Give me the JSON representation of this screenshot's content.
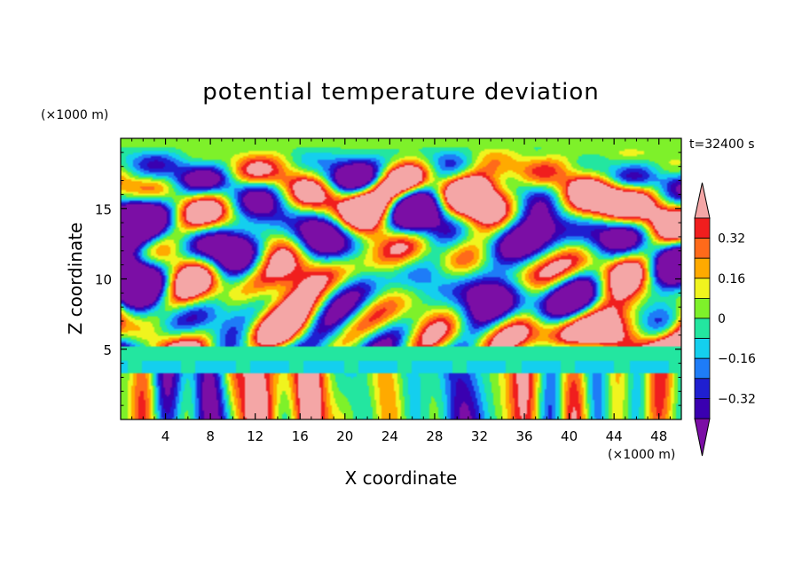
{
  "chart_data": {
    "type": "heatmap",
    "title": "potential temperature deviation",
    "xlabel": "X coordinate",
    "ylabel": "Z coordinate",
    "x_unit": "(×1000 m)",
    "y_unit": "(×1000 m)",
    "time_label": "t=32400 s",
    "xlim": [
      0,
      50
    ],
    "ylim": [
      0,
      20
    ],
    "x_ticks": [
      4,
      8,
      12,
      16,
      20,
      24,
      28,
      32,
      36,
      40,
      44,
      48
    ],
    "y_ticks": [
      5,
      10,
      15
    ],
    "colorbar": {
      "levels": [
        -0.48,
        -0.4,
        -0.32,
        -0.24,
        -0.16,
        -0.08,
        0,
        0.08,
        0.16,
        0.24,
        0.32,
        0.4
      ],
      "labels": [
        "0.32",
        "0.16",
        "0",
        "−0.16",
        "−0.32"
      ],
      "label_values": [
        0.32,
        0.16,
        0,
        -0.16,
        -0.32
      ],
      "extend": "both"
    },
    "colors": [
      "#7b0ea5",
      "#3a00b0",
      "#1f1fd0",
      "#1e7cf7",
      "#14cfee",
      "#23e6a0",
      "#7ef12a",
      "#f0f41e",
      "#ffaa00",
      "#ff6a1a",
      "#f01e1e",
      "#f4a6a6"
    ]
  }
}
